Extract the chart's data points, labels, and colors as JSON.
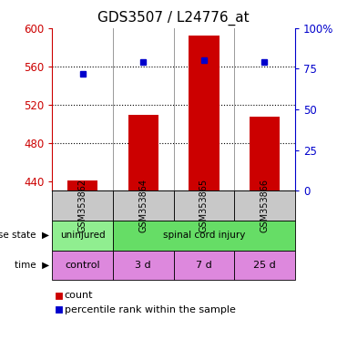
{
  "title": "GDS3507 / L24776_at",
  "samples": [
    "GSM353862",
    "GSM353864",
    "GSM353865",
    "GSM353866"
  ],
  "count_values": [
    441,
    509,
    592,
    507
  ],
  "percentile_values": [
    72,
    79,
    80,
    79
  ],
  "ylim_left": [
    430,
    600
  ],
  "ylim_right": [
    0,
    100
  ],
  "yticks_left": [
    440,
    480,
    520,
    560,
    600
  ],
  "yticks_right": [
    0,
    25,
    50,
    75,
    100
  ],
  "yticklabels_right": [
    "0",
    "25",
    "50",
    "75",
    "100%"
  ],
  "bar_color": "#cc0000",
  "dot_color": "#0000cc",
  "bar_width": 0.5,
  "time_labels": [
    "control",
    "3 d",
    "7 d",
    "25 d"
  ],
  "sample_bg_color": "#c8c8c8",
  "disease_uninjured_color": "#90ee90",
  "disease_injury_color": "#66dd66",
  "time_bg_color": "#dd88dd",
  "left_axis_color": "#cc0000",
  "right_axis_color": "#0000cc",
  "grid_yticks": [
    480,
    520,
    560
  ],
  "title_fontsize": 11
}
